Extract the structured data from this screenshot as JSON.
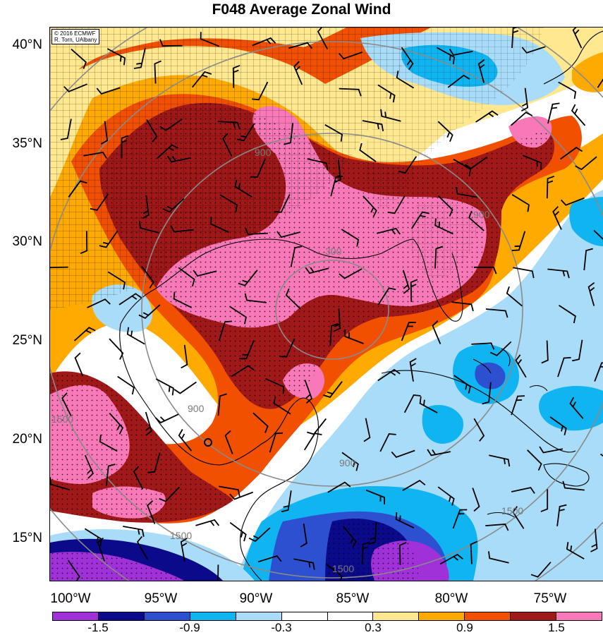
{
  "title": "F048 Average Zonal Wind",
  "credit": {
    "line1": "© 2016 ECMWF",
    "line2": "R. Torn, UAlbany"
  },
  "lat_labels": [
    "40°N",
    "35°N",
    "30°N",
    "25°N",
    "20°N",
    "15°N"
  ],
  "lon_labels": [
    "100°W",
    "95°W",
    "90°W",
    "85°W",
    "80°W",
    "75°W"
  ],
  "colorbar": {
    "colors": [
      "#a030d8",
      "#0a0a8a",
      "#2c50d0",
      "#10b4f0",
      "#a8dcf8",
      "#ffffff",
      "#ffffff",
      "#ffe890",
      "#ffaa00",
      "#f05000",
      "#a01818",
      "#f878b8"
    ],
    "labels": [
      "-1.5",
      "-0.9",
      "-0.3",
      "0.3",
      "0.9",
      "1.5"
    ]
  },
  "contour_labels": [
    "300",
    "900",
    "900",
    "900",
    "900",
    "1500",
    "1500",
    "1500",
    "1500"
  ]
}
